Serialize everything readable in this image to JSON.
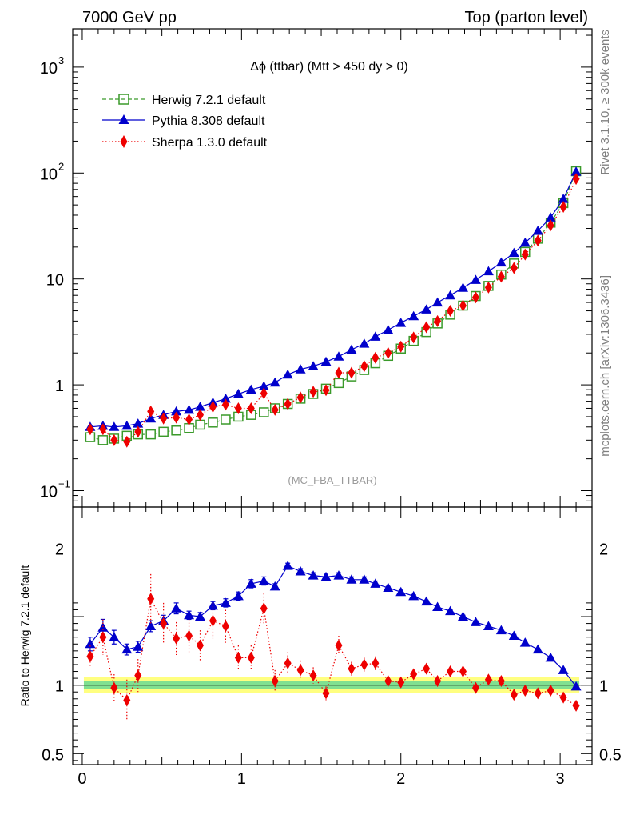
{
  "header": {
    "left_label": "7000 GeV pp",
    "right_label": "Top (parton level)"
  },
  "side_labels": {
    "rivet": "Rivet 3.1.10, ≥ 300k events",
    "mcplots": "mcplots.cern.ch [arXiv:1306.3436]"
  },
  "chart_data": [
    {
      "type": "scatter",
      "title": "Δϕ (ttbar) (Mtt > 450 dy > 0)",
      "watermark": "(MC_FBA_TTBAR)",
      "yscale": "log",
      "ylim": [
        0.07,
        2300
      ],
      "xlim": [
        -0.06,
        3.2
      ],
      "yticks": [
        {
          "value": 0.1,
          "mant": "10",
          "exp": "−1"
        },
        {
          "value": 1,
          "mant": "1",
          "exp": ""
        },
        {
          "value": 10,
          "mant": "10",
          "exp": ""
        },
        {
          "value": 100,
          "mant": "10",
          "exp": "2"
        },
        {
          "value": 1000,
          "mant": "10",
          "exp": "3"
        }
      ],
      "legend_position": "top-left",
      "x": [
        0.05,
        0.13,
        0.2,
        0.28,
        0.35,
        0.43,
        0.51,
        0.59,
        0.67,
        0.74,
        0.82,
        0.9,
        0.98,
        1.06,
        1.14,
        1.21,
        1.29,
        1.37,
        1.45,
        1.53,
        1.61,
        1.69,
        1.77,
        1.84,
        1.92,
        2.0,
        2.08,
        2.16,
        2.23,
        2.31,
        2.39,
        2.47,
        2.55,
        2.63,
        2.71,
        2.78,
        2.86,
        2.94,
        3.02,
        3.1
      ],
      "series": [
        {
          "name": "Herwig 7.2.1 default",
          "color": "#3a9a2a",
          "marker": "open-square",
          "line": "dashed",
          "values": [
            0.32,
            0.3,
            0.31,
            0.33,
            0.34,
            0.34,
            0.36,
            0.37,
            0.39,
            0.42,
            0.44,
            0.47,
            0.5,
            0.52,
            0.55,
            0.6,
            0.66,
            0.74,
            0.82,
            0.92,
            1.04,
            1.2,
            1.38,
            1.6,
            1.88,
            2.2,
            2.6,
            3.15,
            3.8,
            4.6,
            5.6,
            6.9,
            8.6,
            11.0,
            14.0,
            18.0,
            24.0,
            34.0,
            52.0,
            104.0
          ]
        },
        {
          "name": "Pythia 8.308 default",
          "color": "#0000cc",
          "marker": "filled-triangle",
          "line": "solid",
          "values": [
            0.4,
            0.41,
            0.4,
            0.41,
            0.43,
            0.48,
            0.52,
            0.56,
            0.58,
            0.62,
            0.68,
            0.74,
            0.82,
            0.9,
            0.97,
            1.05,
            1.25,
            1.4,
            1.5,
            1.65,
            1.85,
            2.15,
            2.45,
            2.85,
            3.3,
            3.85,
            4.45,
            5.15,
            6.0,
            7.0,
            8.25,
            9.8,
            11.8,
            14.3,
            17.6,
            22.0,
            28.5,
            38.0,
            57.0,
            103.0
          ]
        },
        {
          "name": "Sherpa 1.3.0 default",
          "color": "#ee0000",
          "marker": "filled-diamond",
          "line": "dotted",
          "values": [
            0.38,
            0.38,
            0.3,
            0.29,
            0.36,
            0.56,
            0.48,
            0.49,
            0.47,
            0.52,
            0.62,
            0.65,
            0.6,
            0.6,
            0.83,
            0.58,
            0.66,
            0.76,
            0.86,
            0.89,
            1.3,
            1.3,
            1.5,
            1.8,
            2.0,
            2.3,
            2.8,
            3.5,
            4.0,
            5.0,
            5.6,
            6.7,
            8.3,
            10.5,
            12.7,
            17.0,
            23.0,
            32.0,
            48.0,
            88.0
          ]
        }
      ]
    },
    {
      "type": "scatter",
      "ylabel": "Ratio to Herwig 7.2.1 default",
      "ylim": [
        0.42,
        2.3
      ],
      "xlim": [
        -0.06,
        3.2
      ],
      "xticks": [
        0,
        1,
        2,
        3
      ],
      "yticks": [
        0.5,
        1,
        2
      ],
      "reference_band": {
        "inner": [
          0.97,
          1.03
        ],
        "outer": [
          0.94,
          1.06
        ]
      },
      "x": [
        0.05,
        0.13,
        0.2,
        0.28,
        0.35,
        0.43,
        0.51,
        0.59,
        0.67,
        0.74,
        0.82,
        0.9,
        0.98,
        1.06,
        1.14,
        1.21,
        1.29,
        1.37,
        1.45,
        1.53,
        1.61,
        1.69,
        1.77,
        1.84,
        1.92,
        2.0,
        2.08,
        2.16,
        2.23,
        2.31,
        2.39,
        2.47,
        2.55,
        2.63,
        2.71,
        2.78,
        2.86,
        2.94,
        3.02,
        3.1
      ],
      "series": [
        {
          "name": "Pythia 8.308 default",
          "color": "#0000cc",
          "marker": "filled-triangle",
          "line": "solid",
          "values": [
            1.3,
            1.42,
            1.35,
            1.26,
            1.28,
            1.43,
            1.47,
            1.56,
            1.51,
            1.5,
            1.58,
            1.6,
            1.65,
            1.74,
            1.76,
            1.72,
            1.87,
            1.83,
            1.8,
            1.79,
            1.8,
            1.77,
            1.77,
            1.74,
            1.71,
            1.68,
            1.65,
            1.61,
            1.57,
            1.54,
            1.5,
            1.46,
            1.43,
            1.4,
            1.36,
            1.31,
            1.26,
            1.2,
            1.11,
            0.99
          ],
          "errors": [
            0.05,
            0.06,
            0.05,
            0.04,
            0.04,
            0.04,
            0.04,
            0.04,
            0.03,
            0.03,
            0.03,
            0.03,
            0.03,
            0.03,
            0.03,
            0.02,
            0.02,
            0.02,
            0.02,
            0.02,
            0.02,
            0.02,
            0.02,
            0.02,
            0.01,
            0.01,
            0.01,
            0.01,
            0.01,
            0.01,
            0.01,
            0.01,
            0.01,
            0.01,
            0.01,
            0.01,
            0.01,
            0.01,
            0.01,
            0.01
          ]
        },
        {
          "name": "Sherpa 1.3.0 default",
          "color": "#ee0000",
          "marker": "filled-diamond",
          "line": "dotted",
          "values": [
            1.21,
            1.35,
            0.98,
            0.89,
            1.07,
            1.63,
            1.45,
            1.34,
            1.36,
            1.29,
            1.47,
            1.43,
            1.2,
            1.2,
            1.56,
            1.03,
            1.16,
            1.11,
            1.07,
            0.94,
            1.29,
            1.12,
            1.15,
            1.16,
            1.03,
            1.02,
            1.08,
            1.12,
            1.03,
            1.1,
            1.1,
            0.98,
            1.04,
            1.03,
            0.93,
            0.96,
            0.94,
            0.96,
            0.91,
            0.85
          ],
          "errors": [
            0.08,
            0.13,
            0.1,
            0.15,
            0.12,
            0.18,
            0.15,
            0.12,
            0.12,
            0.11,
            0.13,
            0.12,
            0.09,
            0.09,
            0.11,
            0.08,
            0.08,
            0.07,
            0.06,
            0.05,
            0.07,
            0.05,
            0.05,
            0.05,
            0.03,
            0.03,
            0.03,
            0.03,
            0.02,
            0.02,
            0.02,
            0.02,
            0.02,
            0.02,
            0.02,
            0.02,
            0.01,
            0.01,
            0.01,
            0.01
          ]
        }
      ]
    }
  ]
}
